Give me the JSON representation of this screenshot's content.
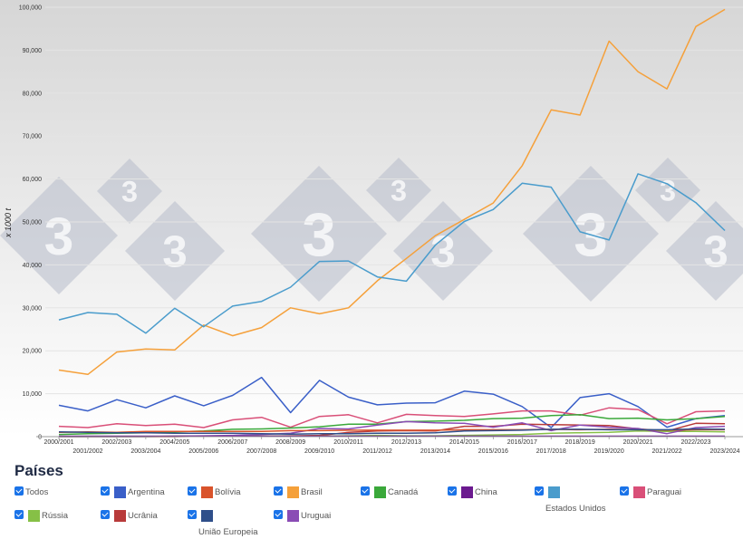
{
  "chart_data": {
    "type": "line",
    "ylabel": "x 1000 t",
    "ylim": [
      0,
      100000
    ],
    "yticks": [
      0,
      10000,
      20000,
      30000,
      40000,
      50000,
      60000,
      70000,
      80000,
      90000,
      100000
    ],
    "ytick_labels": [
      "0",
      "10,000",
      "20,000",
      "30,000",
      "40,000",
      "50,000",
      "60,000",
      "70,000",
      "80,000",
      "90,000",
      "100,000"
    ],
    "x": [
      "2000/2001",
      "2001/2002",
      "2002/2003",
      "2003/2004",
      "2004/2005",
      "2005/2006",
      "2006/2007",
      "2007/2008",
      "2008/2009",
      "2009/2010",
      "2010/2011",
      "2011/2012",
      "2012/2013",
      "2013/2014",
      "2014/2015",
      "2015/2016",
      "2016/2017",
      "2017/2018",
      "2018/2019",
      "2019/2020",
      "2020/2021",
      "2021/2022",
      "2022/2023",
      "2023/2024"
    ],
    "series": [
      {
        "name": "Brasil",
        "color": "#f5a03a",
        "values": [
          15500,
          14500,
          19700,
          20400,
          20200,
          26000,
          23500,
          25400,
          30000,
          28600,
          30000,
          36300,
          41500,
          46800,
          50600,
          54400,
          63100,
          76100,
          74900,
          92100,
          85000,
          81000,
          95500,
          99500
        ]
      },
      {
        "name": "Estados Unidos",
        "color": "#4a9ccc",
        "values": [
          27200,
          28900,
          28500,
          24100,
          29900,
          25600,
          30400,
          31500,
          34800,
          40800,
          40900,
          37200,
          36200,
          44600,
          50100,
          52900,
          59000,
          58100,
          47700,
          45800,
          61200,
          58900,
          54500,
          48000
        ]
      },
      {
        "name": "Argentina",
        "color": "#3a5fc8",
        "values": [
          7300,
          6000,
          8600,
          6700,
          9500,
          7200,
          9600,
          13800,
          5600,
          13100,
          9200,
          7400,
          7800,
          7900,
          10600,
          9900,
          7000,
          2100,
          9100,
          10000,
          7000,
          2200,
          4200,
          4900
        ]
      },
      {
        "name": "Paraguai",
        "color": "#d94f78",
        "values": [
          2400,
          2100,
          3000,
          2600,
          2900,
          2100,
          3900,
          4500,
          2200,
          4700,
          5100,
          3200,
          5200,
          4900,
          4700,
          5300,
          6000,
          6000,
          5000,
          6700,
          6300,
          3000,
          5800,
          6000
        ]
      },
      {
        "name": "Canadá",
        "color": "#3aa83a",
        "values": [
          500,
          700,
          800,
          900,
          1100,
          1300,
          1700,
          1800,
          2000,
          2300,
          2900,
          2900,
          3500,
          3600,
          3800,
          4200,
          4300,
          4900,
          5100,
          4200,
          4300,
          3900,
          4200,
          4700
        ]
      },
      {
        "name": "Ucrânia",
        "color": "#b83a3a",
        "values": [
          0,
          0,
          0,
          0,
          0,
          100,
          100,
          100,
          200,
          300,
          1000,
          1300,
          1400,
          1300,
          2400,
          2400,
          2900,
          2800,
          2700,
          2600,
          1800,
          1300,
          3100,
          3000
        ]
      },
      {
        "name": "Rússia",
        "color": "#86c046",
        "values": [
          0,
          0,
          0,
          0,
          100,
          100,
          100,
          100,
          100,
          100,
          200,
          300,
          200,
          200,
          300,
          400,
          500,
          800,
          900,
          1000,
          1300,
          1200,
          1200,
          1100
        ]
      },
      {
        "name": "Uruguai",
        "color": "#8a4cb5",
        "values": [
          0,
          0,
          0,
          0,
          100,
          200,
          300,
          500,
          800,
          1900,
          1800,
          2700,
          3500,
          3200,
          3100,
          2200,
          3200,
          1400,
          2700,
          2200,
          1900,
          700,
          2100,
          2400
        ]
      },
      {
        "name": "Bolívia",
        "color": "#d9532b",
        "values": [
          1000,
          1100,
          1000,
          1200,
          1200,
          1200,
          1200,
          1200,
          1400,
          1400,
          1500,
          1500,
          1500,
          1500,
          1600,
          1600,
          1600,
          1700,
          1600,
          1700,
          1600,
          1500,
          1600,
          1600
        ]
      },
      {
        "name": "União Europeia",
        "color": "#2f4f8a",
        "values": [
          1100,
          1000,
          900,
          900,
          800,
          800,
          800,
          700,
          600,
          700,
          700,
          800,
          800,
          900,
          1300,
          1400,
          1500,
          1700,
          1700,
          1600,
          1600,
          1600,
          1800,
          1700
        ]
      },
      {
        "name": "China",
        "color": "#6b1a8f",
        "values": [
          100,
          100,
          100,
          100,
          100,
          100,
          100,
          100,
          100,
          100,
          100,
          100,
          100,
          100,
          100,
          100,
          100,
          100,
          100,
          100,
          100,
          100,
          100,
          100
        ]
      }
    ]
  },
  "legend": {
    "title": "Países",
    "items": [
      {
        "label": "Todos",
        "color": ""
      },
      {
        "label": "Argentina",
        "color": "#3a5fc8"
      },
      {
        "label": "Bolívia",
        "color": "#d9532b"
      },
      {
        "label": "Brasil",
        "color": "#f5a03a"
      },
      {
        "label": "Canadá",
        "color": "#3aa83a"
      },
      {
        "label": "China",
        "color": "#6b1a8f"
      },
      {
        "label": "Estados Unidos",
        "color": "#4a9ccc"
      },
      {
        "label": "Paraguai",
        "color": "#d94f78"
      },
      {
        "label": "Rússia",
        "color": "#86c046"
      },
      {
        "label": "Ucrânia",
        "color": "#b83a3a"
      },
      {
        "label": "União Europeia",
        "color": "#2f4f8a"
      },
      {
        "label": "Uruguai",
        "color": "#8a4cb5"
      }
    ]
  },
  "watermark": {
    "glyph": "3"
  }
}
